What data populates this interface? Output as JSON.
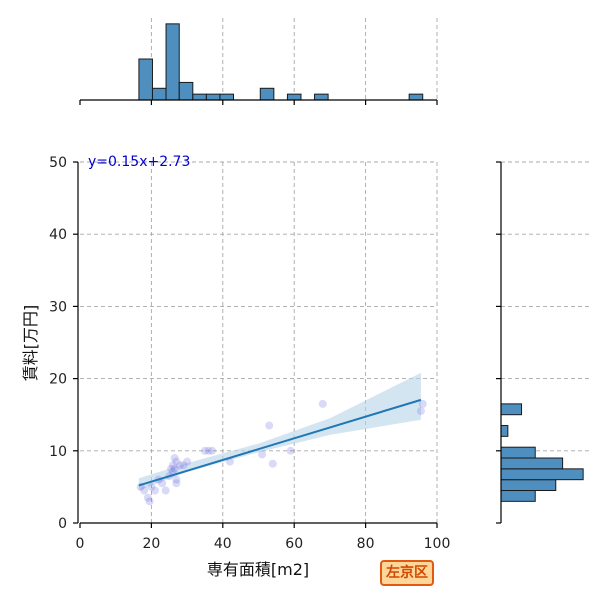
{
  "chart_data": {
    "type": "scatter",
    "badge": "左京区",
    "main": {
      "xlabel": "専有面積[m2]",
      "ylabel": "賃料[万円]",
      "xlim": [
        0,
        100
      ],
      "ylim": [
        0,
        50
      ],
      "xticks": [
        0,
        20,
        40,
        60,
        80,
        100
      ],
      "yticks": [
        0,
        10,
        20,
        30,
        40,
        50
      ],
      "grid": true,
      "equation": "y=0.15x+2.73",
      "points": [
        [
          17,
          5.0
        ],
        [
          18,
          4.5
        ],
        [
          19,
          3.5
        ],
        [
          19.5,
          3.0
        ],
        [
          20,
          5.0
        ],
        [
          21,
          4.5
        ],
        [
          22,
          6.0
        ],
        [
          23,
          5.5
        ],
        [
          24,
          4.5
        ],
        [
          25,
          6.5
        ],
        [
          25.5,
          7.5
        ],
        [
          26,
          8.0
        ],
        [
          26,
          7.0
        ],
        [
          26.5,
          9.0
        ],
        [
          26.5,
          7.5
        ],
        [
          27,
          6.0
        ],
        [
          27,
          8.5
        ],
        [
          27,
          5.5
        ],
        [
          28,
          8.0
        ],
        [
          29,
          8.0
        ],
        [
          30,
          8.5
        ],
        [
          35,
          10.0
        ],
        [
          36,
          10.0
        ],
        [
          37,
          10.0
        ],
        [
          42,
          8.5
        ],
        [
          51,
          9.5
        ],
        [
          53,
          13.5
        ],
        [
          54,
          8.2
        ],
        [
          59,
          10.0
        ],
        [
          68,
          16.5
        ],
        [
          95.5,
          15.5
        ],
        [
          96,
          16.5
        ]
      ],
      "fit": {
        "slope": 0.15,
        "intercept": 2.73,
        "x_range": [
          16.5,
          95.5
        ]
      },
      "confidence_band": [
        [
          16.5,
          4.5,
          6.2
        ],
        [
          30,
          7.1,
          8.3
        ],
        [
          50,
          9.8,
          11.0
        ],
        [
          70,
          12.2,
          14.5
        ],
        [
          95.5,
          14.3,
          20.8
        ]
      ],
      "line_color": "#1f77b4",
      "band_color": "#b8d4ea",
      "equation_color": "#0000cc"
    },
    "x_histogram": {
      "bins": [
        {
          "x0": 16.5,
          "x1": 20.3,
          "count": 7
        },
        {
          "x0": 20.3,
          "x1": 24.1,
          "count": 2
        },
        {
          "x0": 24.1,
          "x1": 27.8,
          "count": 13
        },
        {
          "x0": 27.8,
          "x1": 31.6,
          "count": 3
        },
        {
          "x0": 31.6,
          "x1": 35.4,
          "count": 1
        },
        {
          "x0": 35.4,
          "x1": 39.2,
          "count": 1
        },
        {
          "x0": 39.2,
          "x1": 43.0,
          "count": 1
        },
        {
          "x0": 50.5,
          "x1": 54.3,
          "count": 2
        },
        {
          "x0": 58.1,
          "x1": 61.9,
          "count": 1
        },
        {
          "x0": 65.7,
          "x1": 69.5,
          "count": 1
        },
        {
          "x0": 92.2,
          "x1": 96.0,
          "count": 1
        }
      ]
    },
    "y_histogram": {
      "bins": [
        {
          "y0": 3.0,
          "y1": 4.5,
          "count": 5
        },
        {
          "y0": 4.5,
          "y1": 6.0,
          "count": 8
        },
        {
          "y0": 6.0,
          "y1": 7.5,
          "count": 12
        },
        {
          "y0": 7.5,
          "y1": 9.0,
          "count": 9
        },
        {
          "y0": 9.0,
          "y1": 10.5,
          "count": 5
        },
        {
          "y0": 12.0,
          "y1": 13.5,
          "count": 1
        },
        {
          "y0": 15.0,
          "y1": 16.5,
          "count": 3
        }
      ]
    },
    "bar_color": "#4f8fc0"
  }
}
